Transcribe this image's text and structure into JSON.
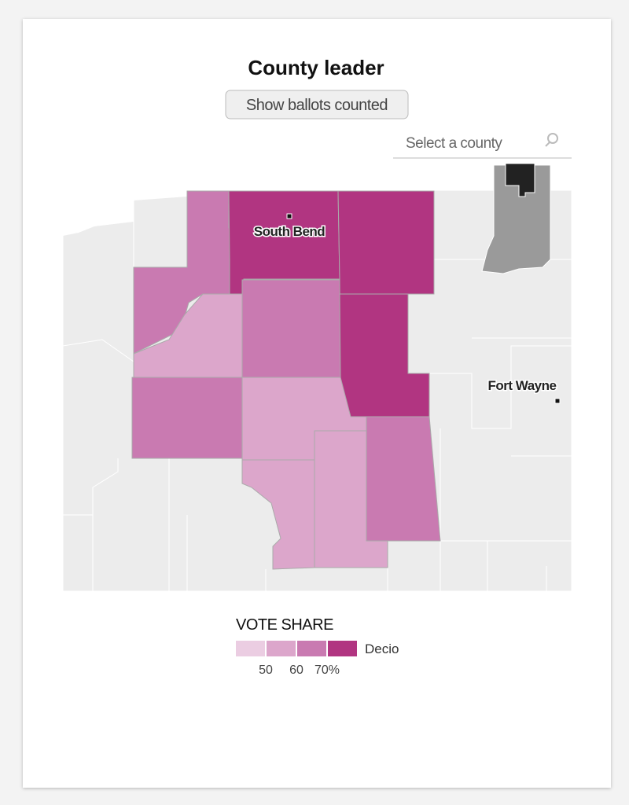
{
  "title": "County leader",
  "button": "Show ballots counted",
  "search": {
    "placeholder": "Select a county"
  },
  "map": {
    "cities": [
      {
        "label": "South Bend"
      },
      {
        "label": "Fort Wayne"
      }
    ]
  },
  "legend": {
    "title": "VOTE SHARE",
    "candidate": "Decio",
    "ticks": [
      "50",
      "60",
      "70%"
    ],
    "colors": [
      "#ebcde2",
      "#dca6cb",
      "#c97ab1",
      "#b13581"
    ]
  }
}
